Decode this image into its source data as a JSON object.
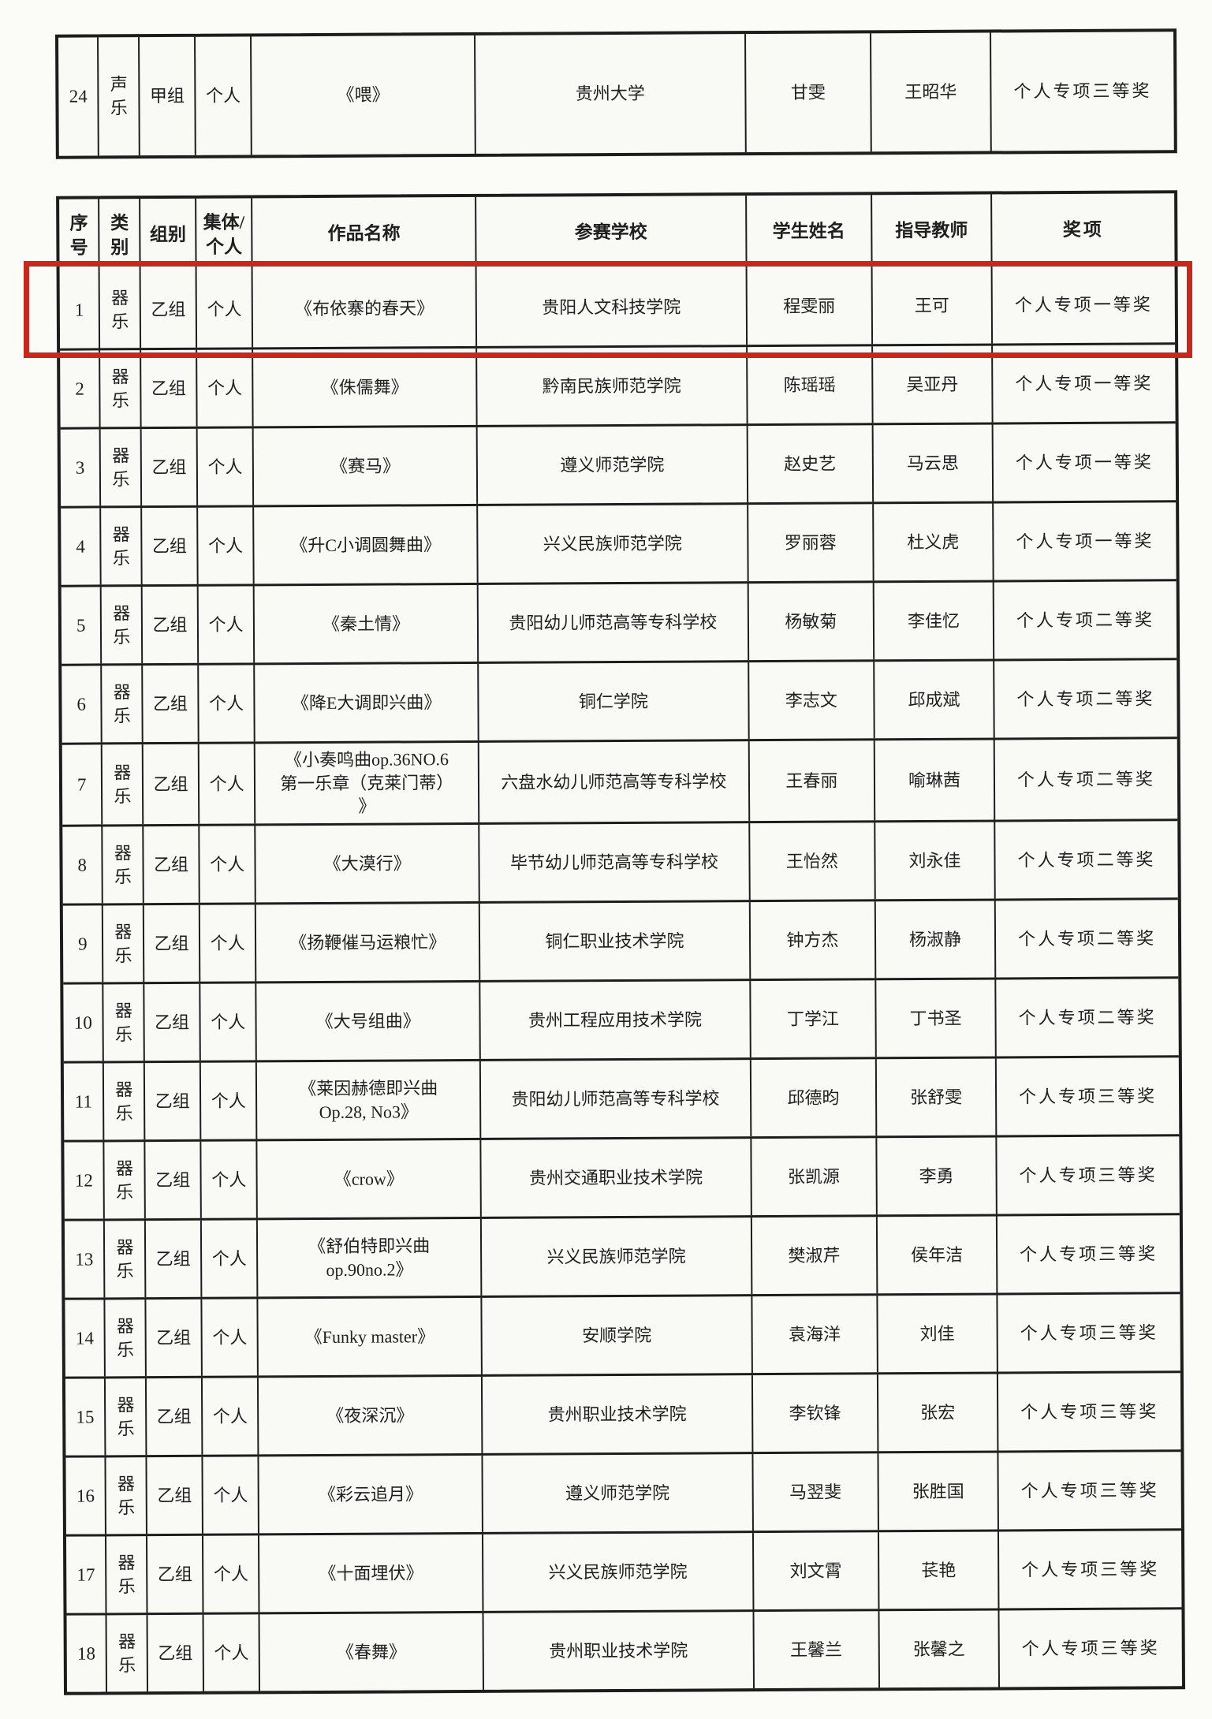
{
  "top_row": {
    "no": "24",
    "category": "声乐",
    "group": "甲组",
    "type": "个人",
    "work": "《喂》",
    "school": "贵州大学",
    "student": "甘雯",
    "teacher": "王昭华",
    "award": "个人专项三等奖"
  },
  "table": {
    "headers": [
      "序号",
      "类别",
      "组别",
      "集体/个人",
      "作品名称",
      "参赛学校",
      "学生姓名",
      "指导教师",
      "奖项"
    ],
    "highlighted_row": 0,
    "rows": [
      {
        "no": "1",
        "category": "器乐",
        "group": "乙组",
        "type": "个人",
        "work": "《布依寨的春天》",
        "school": "贵阳人文科技学院",
        "student": "程雯丽",
        "teacher": "王可",
        "award": "个人专项一等奖"
      },
      {
        "no": "2",
        "category": "器乐",
        "group": "乙组",
        "type": "个人",
        "work": "《侏儒舞》",
        "school": "黔南民族师范学院",
        "student": "陈瑶瑶",
        "teacher": "吴亚丹",
        "award": "个人专项一等奖"
      },
      {
        "no": "3",
        "category": "器乐",
        "group": "乙组",
        "type": "个人",
        "work": "《赛马》",
        "school": "遵义师范学院",
        "student": "赵史艺",
        "teacher": "马云思",
        "award": "个人专项一等奖"
      },
      {
        "no": "4",
        "category": "器乐",
        "group": "乙组",
        "type": "个人",
        "work": "《升C小调圆舞曲》",
        "school": "兴义民族师范学院",
        "student": "罗丽蓉",
        "teacher": "杜义虎",
        "award": "个人专项一等奖"
      },
      {
        "no": "5",
        "category": "器乐",
        "group": "乙组",
        "type": "个人",
        "work": "《秦土情》",
        "school": "贵阳幼儿师范高等专科学校",
        "student": "杨敏菊",
        "teacher": "李佳忆",
        "award": "个人专项二等奖"
      },
      {
        "no": "6",
        "category": "器乐",
        "group": "乙组",
        "type": "个人",
        "work": "《降E大调即兴曲》",
        "school": "铜仁学院",
        "student": "李志文",
        "teacher": "邱成斌",
        "award": "个人专项二等奖"
      },
      {
        "no": "7",
        "category": "器乐",
        "group": "乙组",
        "type": "个人",
        "work": "《小奏鸣曲op.36NO.6\n第一乐章（克莱门蒂）\n》",
        "school": "六盘水幼儿师范高等专科学校",
        "student": "王春丽",
        "teacher": "喻琳茜",
        "award": "个人专项二等奖"
      },
      {
        "no": "8",
        "category": "器乐",
        "group": "乙组",
        "type": "个人",
        "work": "《大漠行》",
        "school": "毕节幼儿师范高等专科学校",
        "student": "王怡然",
        "teacher": "刘永佳",
        "award": "个人专项二等奖"
      },
      {
        "no": "9",
        "category": "器乐",
        "group": "乙组",
        "type": "个人",
        "work": "《扬鞭催马运粮忙》",
        "school": "铜仁职业技术学院",
        "student": "钟方杰",
        "teacher": "杨淑静",
        "award": "个人专项二等奖"
      },
      {
        "no": "10",
        "category": "器乐",
        "group": "乙组",
        "type": "个人",
        "work": "《大号组曲》",
        "school": "贵州工程应用技术学院",
        "student": "丁学江",
        "teacher": "丁书圣",
        "award": "个人专项二等奖"
      },
      {
        "no": "11",
        "category": "器乐",
        "group": "乙组",
        "type": "个人",
        "work": "《莱因赫德即兴曲\nOp.28, No3》",
        "school": "贵阳幼儿师范高等专科学校",
        "student": "邱德昀",
        "teacher": "张舒雯",
        "award": "个人专项三等奖"
      },
      {
        "no": "12",
        "category": "器乐",
        "group": "乙组",
        "type": "个人",
        "work": "《crow》",
        "school": "贵州交通职业技术学院",
        "student": "张凯源",
        "teacher": "李勇",
        "award": "个人专项三等奖"
      },
      {
        "no": "13",
        "category": "器乐",
        "group": "乙组",
        "type": "个人",
        "work": "《舒伯特即兴曲\nop.90no.2》",
        "school": "兴义民族师范学院",
        "student": "樊淑芹",
        "teacher": "侯年洁",
        "award": "个人专项三等奖"
      },
      {
        "no": "14",
        "category": "器乐",
        "group": "乙组",
        "type": "个人",
        "work": "《Funky master》",
        "school": "安顺学院",
        "student": "袁海洋",
        "teacher": "刘佳",
        "award": "个人专项三等奖"
      },
      {
        "no": "15",
        "category": "器乐",
        "group": "乙组",
        "type": "个人",
        "work": "《夜深沉》",
        "school": "贵州职业技术学院",
        "student": "李钦锋",
        "teacher": "张宏",
        "award": "个人专项三等奖"
      },
      {
        "no": "16",
        "category": "器乐",
        "group": "乙组",
        "type": "个人",
        "work": "《彩云追月》",
        "school": "遵义师范学院",
        "student": "马翌斐",
        "teacher": "张胜国",
        "award": "个人专项三等奖"
      },
      {
        "no": "17",
        "category": "器乐",
        "group": "乙组",
        "type": "个人",
        "work": "《十面埋伏》",
        "school": "兴义民族师范学院",
        "student": "刘文霄",
        "teacher": "苌艳",
        "award": "个人专项三等奖"
      },
      {
        "no": "18",
        "category": "器乐",
        "group": "乙组",
        "type": "个人",
        "work": "《春舞》",
        "school": "贵州职业技术学院",
        "student": "王馨兰",
        "teacher": "张馨之",
        "award": "个人专项三等奖"
      }
    ]
  },
  "colors": {
    "highlight": "#c8271b",
    "border": "#1d1d1d",
    "paper": "#fbfbf8",
    "ink": "#1f1f1f"
  }
}
